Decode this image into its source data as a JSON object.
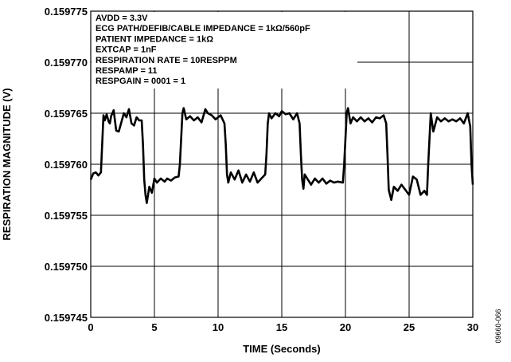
{
  "chart_data": {
    "type": "line",
    "xlabel": "TIME (Seconds)",
    "ylabel": "RESPIRATION MAGNITUDE (V)",
    "xlim": [
      0,
      30
    ],
    "ylim": [
      0.159745,
      0.159775
    ],
    "x_ticks": [
      "0",
      "5",
      "10",
      "15",
      "20",
      "25",
      "30"
    ],
    "y_ticks": [
      "0.159775",
      "0.159770",
      "0.159765",
      "0.159760",
      "0.159755",
      "0.159750",
      "0.159745"
    ],
    "grid": true,
    "annotations": [
      "AVDD = 3.3V",
      "ECG PATH/DEFIB/CABLE IMPEDANCE = 1kΩ/560pF",
      "PATIENT IMPEDANCE = 1kΩ",
      "EXTCAP = 1nF",
      "RESPIRATION RATE = 10RESPPM",
      "RESPAMP = 11",
      "RESPGAIN = 0001 = 1"
    ],
    "figure_id": "09660-066",
    "series": [
      {
        "x": [
          0,
          0.2,
          0.4,
          0.6,
          0.8,
          0.9,
          1.0,
          1.1,
          1.25,
          1.4,
          1.5,
          1.6,
          1.8,
          2.0,
          2.2,
          2.4,
          2.6,
          2.8,
          3.0,
          3.2,
          3.4,
          3.6,
          3.8,
          4.0,
          4.1,
          4.2,
          4.3,
          4.4,
          4.6,
          4.8,
          5.0,
          5.2,
          5.5,
          5.8,
          6.0,
          6.3,
          6.6,
          6.9,
          7.0,
          7.1,
          7.2,
          7.3,
          7.5,
          7.8,
          8.1,
          8.4,
          8.7,
          9.0,
          9.2,
          9.5,
          9.8,
          10.2,
          10.5,
          10.6,
          10.7,
          10.8,
          11.0,
          11.3,
          11.6,
          11.9,
          12.2,
          12.5,
          12.8,
          13.1,
          13.4,
          13.7,
          13.8,
          13.9,
          14.0,
          14.2,
          14.5,
          14.8,
          15.0,
          15.3,
          15.6,
          15.9,
          16.2,
          16.4,
          16.5,
          16.6,
          16.7,
          16.8,
          17.0,
          17.3,
          17.6,
          17.9,
          18.2,
          18.5,
          18.8,
          19.1,
          19.4,
          19.8,
          19.9,
          20.0,
          20.1,
          20.2,
          20.4,
          20.6,
          20.9,
          21.2,
          21.5,
          21.8,
          22.1,
          22.4,
          22.7,
          23.0,
          23.2,
          23.3,
          23.4,
          23.6,
          23.8,
          24.1,
          24.4,
          24.7,
          25.0,
          25.3,
          25.6,
          25.9,
          26.2,
          26.4,
          26.5,
          26.6,
          26.7,
          26.9,
          27.2,
          27.5,
          27.8,
          28.1,
          28.4,
          28.7,
          29.0,
          29.3,
          29.6,
          29.8,
          29.9,
          30.0
        ],
        "y": [
          0.1597585,
          0.1597591,
          0.1597592,
          0.1597589,
          0.1597592,
          0.159762,
          0.1597648,
          0.1597643,
          0.1597649,
          0.1597642,
          0.159764,
          0.1597647,
          0.1597653,
          0.1597633,
          0.1597632,
          0.1597641,
          0.159765,
          0.1597646,
          0.1597654,
          0.159764,
          0.1597638,
          0.1597646,
          0.1597643,
          0.1597643,
          0.159762,
          0.1597585,
          0.159757,
          0.1597562,
          0.1597578,
          0.1597572,
          0.1597586,
          0.1597582,
          0.1597586,
          0.1597583,
          0.1597586,
          0.1597584,
          0.1597587,
          0.1597588,
          0.15976,
          0.1597625,
          0.159765,
          0.1597655,
          0.1597644,
          0.1597647,
          0.1597643,
          0.1597646,
          0.1597641,
          0.1597654,
          0.159765,
          0.1597648,
          0.1597644,
          0.1597648,
          0.159764,
          0.159762,
          0.159759,
          0.1597582,
          0.1597592,
          0.1597585,
          0.1597594,
          0.1597582,
          0.159759,
          0.1597583,
          0.1597592,
          0.1597582,
          0.1597586,
          0.159759,
          0.159761,
          0.159764,
          0.159765,
          0.1597645,
          0.159765,
          0.1597647,
          0.1597652,
          0.1597649,
          0.159765,
          0.1597644,
          0.159765,
          0.159764,
          0.159761,
          0.1597585,
          0.1597576,
          0.159759,
          0.1597586,
          0.159758,
          0.1597586,
          0.1597582,
          0.1597586,
          0.1597581,
          0.1597584,
          0.1597582,
          0.1597583,
          0.1597582,
          0.15976,
          0.1597625,
          0.159765,
          0.1597655,
          0.159764,
          0.1597646,
          0.1597642,
          0.1597646,
          0.1597642,
          0.1597645,
          0.1597641,
          0.1597646,
          0.1597645,
          0.1597648,
          0.159764,
          0.159761,
          0.1597575,
          0.1597565,
          0.1597578,
          0.1597574,
          0.159758,
          0.1597575,
          0.159757,
          0.1597588,
          0.1597585,
          0.159757,
          0.1597574,
          0.159757,
          0.15976,
          0.1597625,
          0.159765,
          0.1597632,
          0.1597646,
          0.1597642,
          0.1597645,
          0.1597642,
          0.1597644,
          0.1597642,
          0.1597645,
          0.159764,
          0.159765,
          0.1597637,
          0.15976,
          0.159758
        ]
      }
    ]
  }
}
